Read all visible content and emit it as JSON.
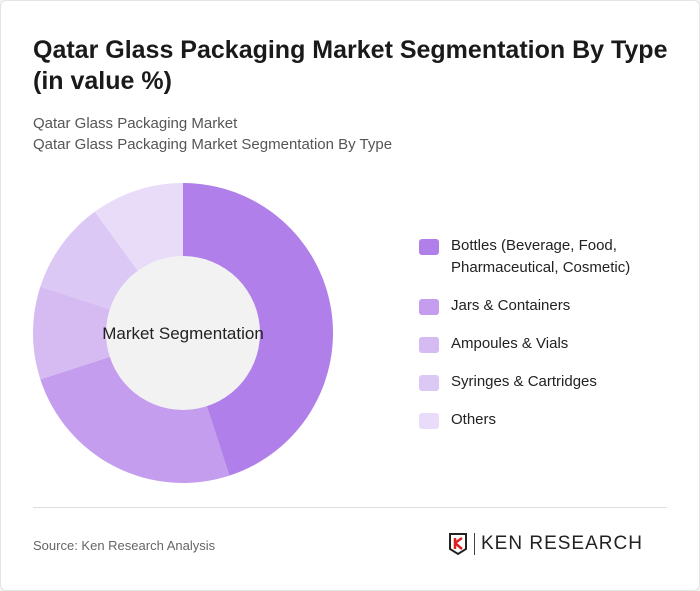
{
  "title": "Qatar Glass Packaging Market Segmentation By Type (in value %)",
  "subtitle1": "Qatar Glass Packaging Market",
  "subtitle2": "Qatar Glass Packaging Market Segmentation By Type",
  "source": "Source: Ken Research Analysis",
  "logo_text": "KEN RESEARCH",
  "chart_data": {
    "type": "pie",
    "donut": true,
    "center_label": "Market Segmentation",
    "categories": [
      "Bottles (Beverage, Food, Pharmaceutical, Cosmetic)",
      "Jars & Containers",
      "Ampoules & Vials",
      "Syringes & Cartridges",
      "Others"
    ],
    "values": [
      45,
      25,
      10,
      10,
      10
    ],
    "colors": [
      "#b07fe9",
      "#c49dee",
      "#d6bbf3",
      "#dcc8f5",
      "#e8dcf9"
    ],
    "legend_position": "right"
  }
}
